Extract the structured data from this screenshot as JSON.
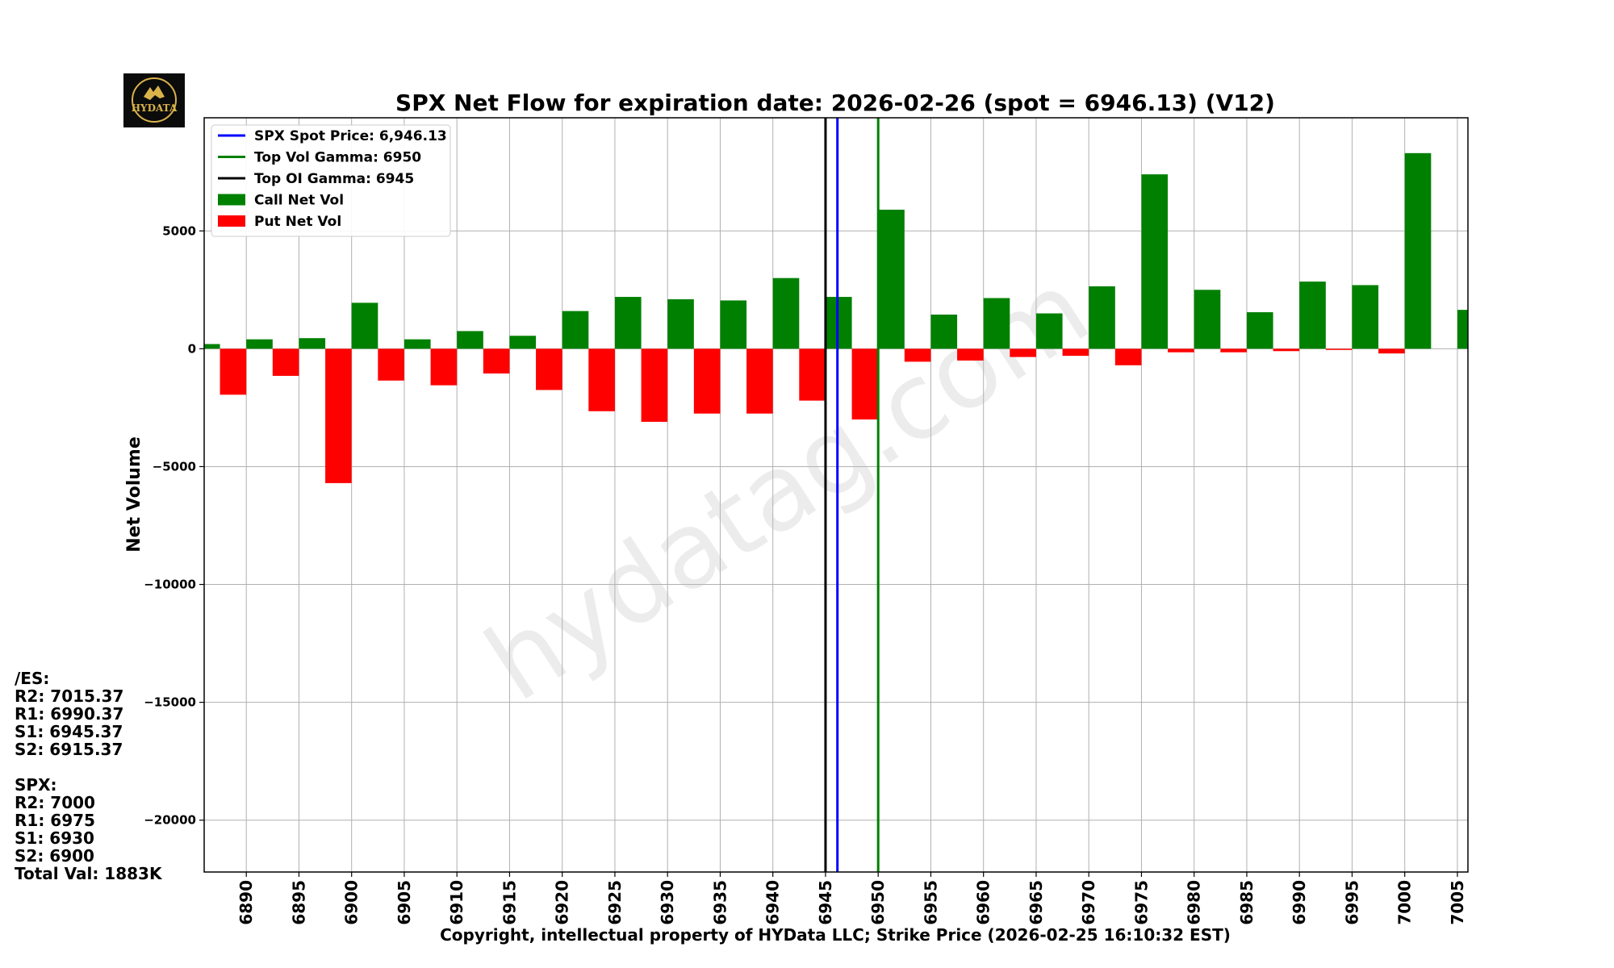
{
  "chart_data": {
    "type": "bar",
    "title": "SPX Net Flow for expiration date: 2026-02-26 (spot = 6946.13) (V12)",
    "ylabel": "Net Volume",
    "xlabel": "Copyright, intellectual property of HYData LLC; Strike Price (2026-02-25 16:10:32 EST)",
    "xlim": [
      6886,
      7006
    ],
    "ylim": [
      -22200,
      9800
    ],
    "yticks": [
      5000,
      0,
      -5000,
      -10000,
      -15000,
      -20000
    ],
    "ytick_labels": [
      "5000",
      "0",
      "−5000",
      "−10000",
      "−15000",
      "−20000"
    ],
    "xticks": [
      6890,
      6895,
      6900,
      6905,
      6910,
      6915,
      6920,
      6925,
      6930,
      6935,
      6940,
      6945,
      6950,
      6955,
      6960,
      6965,
      6970,
      6975,
      6980,
      6985,
      6990,
      6995,
      7000,
      7005
    ],
    "grid": true,
    "legend_position": "top-left",
    "strikes": [
      6885,
      6890,
      6895,
      6900,
      6905,
      6910,
      6915,
      6920,
      6925,
      6930,
      6935,
      6940,
      6945,
      6950,
      6955,
      6960,
      6965,
      6970,
      6975,
      6980,
      6985,
      6990,
      6995,
      7000,
      7005
    ],
    "series": [
      {
        "name": "Call Net Vol",
        "color": "#008000",
        "values": [
          200,
          400,
          450,
          1950,
          400,
          750,
          550,
          1600,
          2200,
          2100,
          2050,
          3000,
          2200,
          5900,
          1450,
          2150,
          1500,
          2650,
          7400,
          2500,
          1550,
          2850,
          2700,
          8300,
          1650
        ]
      },
      {
        "name": "Put Net Vol",
        "color": "#ff0000",
        "values": [
          null,
          -1950,
          -1150,
          -5700,
          -1350,
          -1550,
          -1050,
          -1750,
          -2650,
          -3100,
          -2750,
          -2750,
          -2200,
          -3000,
          -550,
          -500,
          -350,
          -300,
          -700,
          -150,
          -150,
          -100,
          -50,
          -200,
          null
        ]
      }
    ],
    "lines": [
      {
        "name": "SPX Spot Price: 6,946.13",
        "value": 6946.13,
        "color": "#0000ff"
      },
      {
        "name": "Top Vol Gamma: 6950",
        "value": 6950,
        "color": "#008000"
      },
      {
        "name": "Top OI Gamma: 6945",
        "value": 6945,
        "color": "#000000"
      }
    ],
    "legend": [
      {
        "label": "SPX Spot Price: 6,946.13",
        "kind": "line",
        "color": "#0000ff"
      },
      {
        "label": "Top Vol Gamma: 6950",
        "kind": "line",
        "color": "#008000"
      },
      {
        "label": "Top OI Gamma: 6945",
        "kind": "line",
        "color": "#000000"
      },
      {
        "label": "Call Net Vol",
        "kind": "patch",
        "color": "#008000"
      },
      {
        "label": "Put Net Vol",
        "kind": "patch",
        "color": "#ff0000"
      }
    ],
    "watermark": "hydatag.com"
  },
  "logo": {
    "text": "HYDATA"
  },
  "levels": {
    "es_header": "/ES:",
    "es_r2": "R2: 7015.37",
    "es_r1": "R1: 6990.37",
    "es_s1": "S1: 6945.37",
    "es_s2": "S2: 6915.37",
    "spx_header": "SPX:",
    "spx_r2": "R2: 7000",
    "spx_r1": "R1: 6975",
    "spx_s1": "S1: 6930",
    "spx_s2": "S2: 6900",
    "total_val": "Total Val: 1883K"
  }
}
